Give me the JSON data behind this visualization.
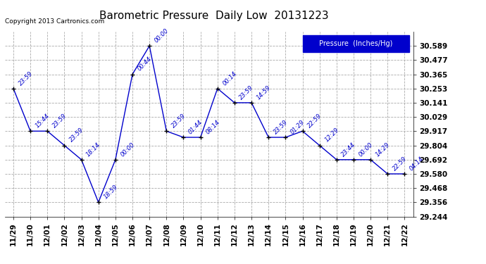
{
  "title": "Barometric Pressure  Daily Low  20131223",
  "copyright": "Copyright 2013 Cartronics.com",
  "legend_label": "Pressure  (Inches/Hg)",
  "x_labels": [
    "11/29",
    "11/30",
    "12/01",
    "12/02",
    "12/03",
    "12/04",
    "12/05",
    "12/06",
    "12/07",
    "12/08",
    "12/09",
    "12/10",
    "12/11",
    "12/12",
    "12/13",
    "12/14",
    "12/15",
    "12/16",
    "12/17",
    "12/18",
    "12/19",
    "12/20",
    "12/21",
    "12/22"
  ],
  "y_values": [
    30.253,
    29.917,
    29.917,
    29.804,
    29.692,
    29.356,
    29.692,
    30.365,
    30.589,
    29.917,
    29.868,
    29.868,
    30.253,
    30.141,
    30.141,
    29.868,
    29.868,
    29.917,
    29.804,
    29.692,
    29.692,
    29.692,
    29.58,
    29.58
  ],
  "time_labels": [
    "23:59",
    "15:44",
    "23:59",
    "23:59",
    "18:14",
    "18:59",
    "00:00",
    "00:44",
    "00:00",
    "23:59",
    "01:44",
    "08:14",
    "00:14",
    "23:59",
    "14:59",
    "23:59",
    "01:29",
    "22:59",
    "12:29",
    "23:44",
    "00:00",
    "14:29",
    "22:59",
    "04:14"
  ],
  "ylim_min": 29.244,
  "ylim_max": 30.701,
  "yticks": [
    29.244,
    29.356,
    29.468,
    29.58,
    29.692,
    29.804,
    29.917,
    30.029,
    30.141,
    30.253,
    30.365,
    30.477,
    30.589
  ],
  "line_color": "#0000cc",
  "marker_color": "#000000",
  "bg_color": "#ffffff",
  "grid_color": "#aaaaaa",
  "text_color": "#0000cc",
  "title_color": "#000000",
  "legend_bg": "#0000cc",
  "legend_text": "#ffffff",
  "figwidth": 6.9,
  "figheight": 3.75,
  "dpi": 100
}
